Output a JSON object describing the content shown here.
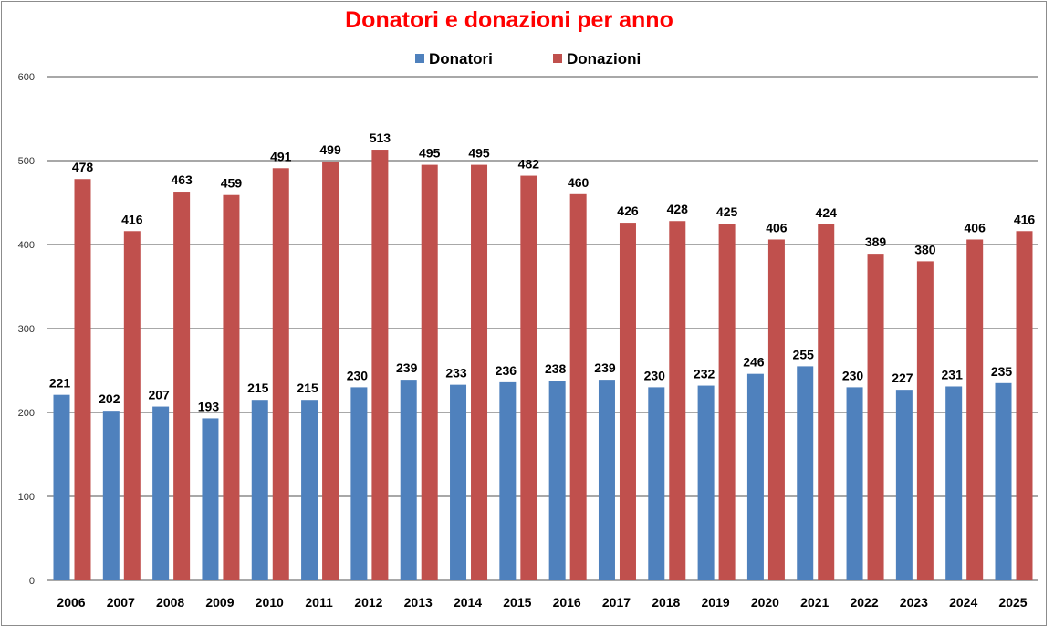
{
  "chart_data": {
    "type": "bar",
    "title": "Donatori e donazioni per anno",
    "xlabel": "",
    "ylabel": "",
    "ylim": [
      0,
      600
    ],
    "yticks": [
      "0",
      "100",
      "200",
      "300",
      "400",
      "500",
      "600"
    ],
    "grid": true,
    "legend_position": "top-center",
    "categories": [
      "2006",
      "2007",
      "2008",
      "2009",
      "2010",
      "2011",
      "2012",
      "2013",
      "2014",
      "2015",
      "2016",
      "2017",
      "2018",
      "2019",
      "2020",
      "2021",
      "2022",
      "2023",
      "2024",
      "2025"
    ],
    "series": [
      {
        "name": "Donatori",
        "color": "#4f81bd",
        "values": [
          221,
          202,
          207,
          193,
          215,
          215,
          230,
          239,
          233,
          236,
          238,
          239,
          230,
          232,
          246,
          255,
          230,
          227,
          231,
          235
        ]
      },
      {
        "name": "Donazioni",
        "color": "#c0504d",
        "values": [
          478,
          416,
          463,
          459,
          491,
          499,
          513,
          495,
          495,
          482,
          460,
          426,
          428,
          425,
          406,
          424,
          389,
          380,
          406,
          416
        ]
      }
    ]
  }
}
